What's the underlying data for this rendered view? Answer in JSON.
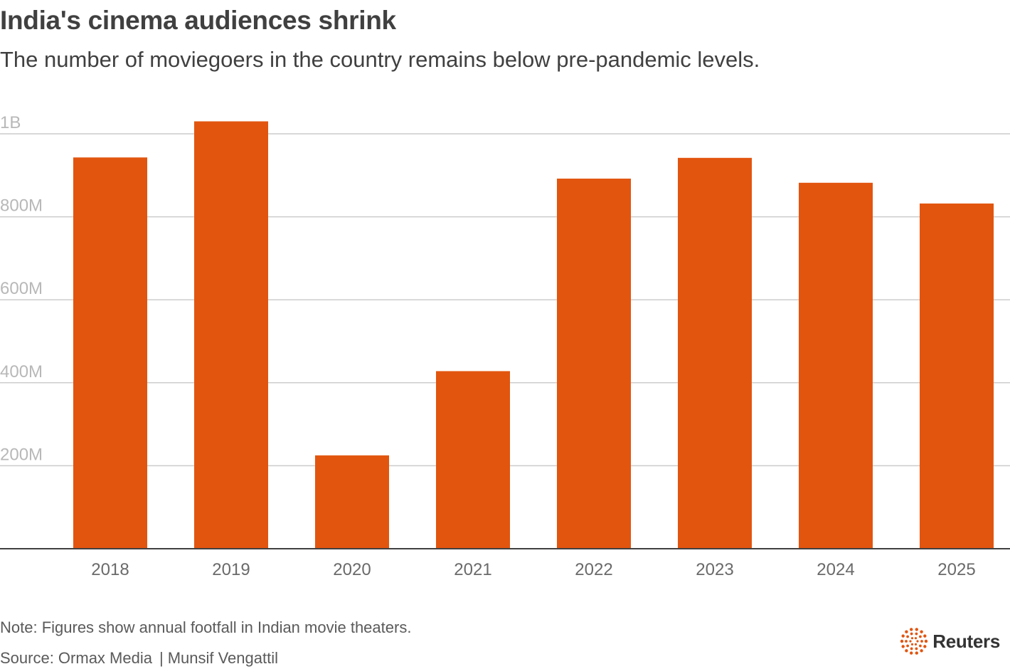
{
  "title": "India's cinema audiences shrink",
  "subtitle": "The number of moviegoers in the country remains below pre-pandemic levels.",
  "chart_data": {
    "type": "bar",
    "categories": [
      "2018",
      "2019",
      "2020",
      "2021",
      "2022",
      "2023",
      "2024",
      "2025"
    ],
    "values": [
      943,
      1030,
      225,
      428,
      892,
      942,
      882,
      832
    ],
    "units": "millions",
    "ylim": [
      0,
      1000
    ],
    "yticks": [
      200,
      400,
      600,
      800,
      1000
    ],
    "ytick_labels": [
      "200M",
      "400M",
      "600M",
      "800M",
      "1B"
    ],
    "title": "India's cinema audiences shrink",
    "xlabel": "",
    "ylabel": "",
    "grid": true,
    "bar_color": "#e2550f"
  },
  "footer": {
    "note": "Note: Figures show annual footfall in Indian movie theaters.",
    "source": "Source: Ormax Media",
    "separator": "|",
    "author": "Munsif Vengattil"
  },
  "logo": {
    "icon": "reuters-dots-icon",
    "text": "Reuters",
    "color": "#e2550f"
  },
  "colors": {
    "text": "#404040",
    "gridline": "#cccccc",
    "axis": "#404040",
    "tick_label": "#b8b8b8"
  }
}
